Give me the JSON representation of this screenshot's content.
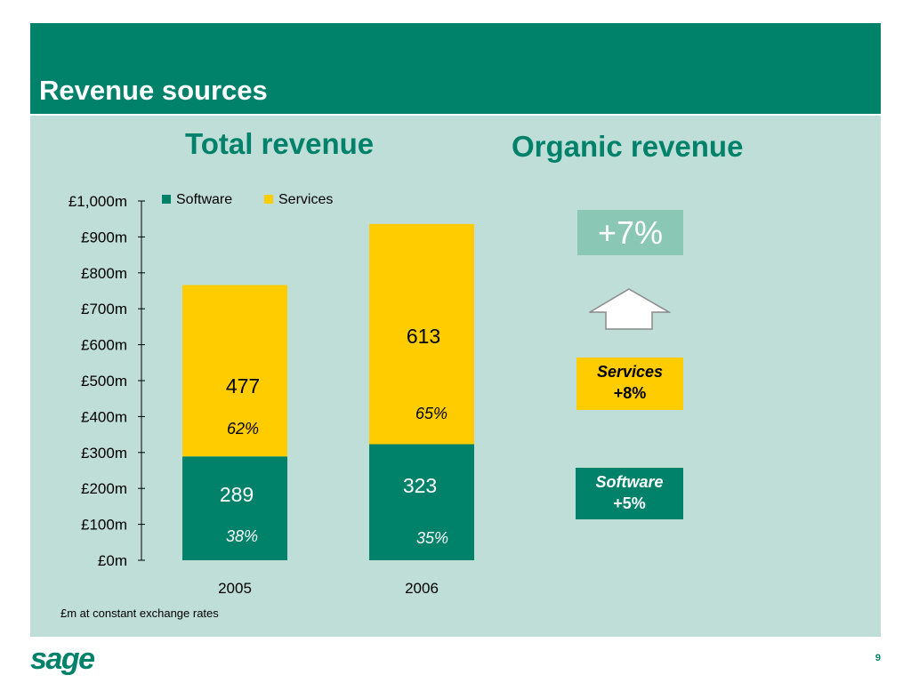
{
  "header": {
    "title": "Revenue sources"
  },
  "left_section": {
    "title": "Total revenue"
  },
  "right_section": {
    "title": "Organic revenue",
    "total_growth": "+7%",
    "services": {
      "label": "Services",
      "growth": "+8%"
    },
    "software": {
      "label": "Software",
      "growth": "+5%"
    }
  },
  "footnote": "£m at constant exchange rates",
  "logo": "sage",
  "page_number": "9",
  "colors": {
    "brand_green": "#00826a",
    "services_yellow": "#ffcc00",
    "panel_bg": "#bfded8",
    "growth_box": "#8ac7b4"
  },
  "chart_data": {
    "type": "bar",
    "stacked": true,
    "categories": [
      "2005",
      "2006"
    ],
    "series": [
      {
        "name": "Software",
        "color": "#00826a",
        "values": [
          289,
          323
        ],
        "percent_labels": [
          "38%",
          "35%"
        ]
      },
      {
        "name": "Services",
        "color": "#ffcc00",
        "values": [
          477,
          613
        ],
        "percent_labels": [
          "62%",
          "65%"
        ]
      }
    ],
    "ylim": [
      0,
      1000
    ],
    "yticks": [
      0,
      100,
      200,
      300,
      400,
      500,
      600,
      700,
      800,
      900,
      1000
    ],
    "ytick_labels": [
      "£0m",
      "£100m",
      "£200m",
      "£300m",
      "£400m",
      "£500m",
      "£600m",
      "£700m",
      "£800m",
      "£900m",
      "£1,000m"
    ],
    "legend_position": "top"
  }
}
